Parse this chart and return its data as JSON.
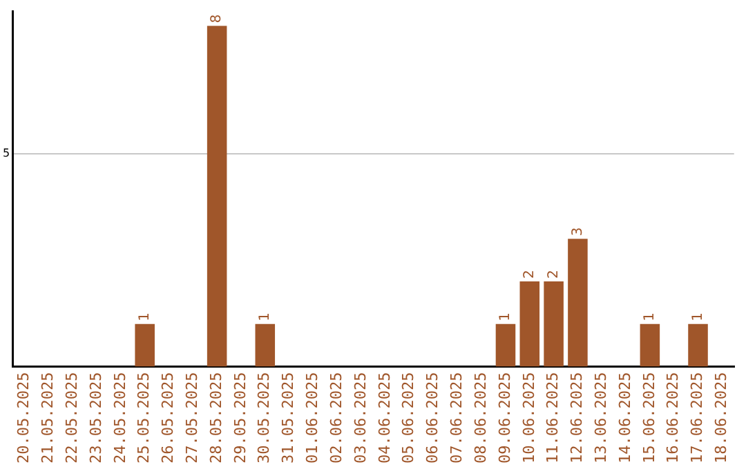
{
  "chart_data": {
    "type": "bar",
    "categories": [
      "20.05.2025",
      "21.05.2025",
      "22.05.2025",
      "23.05.2025",
      "24.05.2025",
      "25.05.2025",
      "26.05.2025",
      "27.05.2025",
      "28.05.2025",
      "29.05.2025",
      "30.05.2025",
      "31.05.2025",
      "01.06.2025",
      "02.06.2025",
      "03.06.2025",
      "04.06.2025",
      "05.06.2025",
      "06.06.2025",
      "07.06.2025",
      "08.06.2025",
      "09.06.2025",
      "10.06.2025",
      "11.06.2025",
      "12.06.2025",
      "13.06.2025",
      "14.06.2025",
      "15.06.2025",
      "16.06.2025",
      "17.06.2025",
      "18.06.2025"
    ],
    "values": [
      0,
      0,
      0,
      0,
      0,
      1,
      0,
      0,
      8,
      0,
      1,
      0,
      0,
      0,
      0,
      0,
      0,
      0,
      0,
      0,
      1,
      2,
      2,
      3,
      0,
      0,
      1,
      0,
      1,
      0
    ],
    "value_labels": [
      null,
      null,
      null,
      null,
      null,
      "1",
      null,
      null,
      "8",
      null,
      "1",
      null,
      null,
      null,
      null,
      null,
      null,
      null,
      null,
      null,
      "1",
      "2",
      "2",
      "3",
      null,
      null,
      "1",
      null,
      "1",
      null
    ],
    "color": "#a0562a",
    "ylim": [
      0,
      8.35
    ],
    "yticks": [
      5
    ],
    "grid": "y",
    "legend": false
  }
}
